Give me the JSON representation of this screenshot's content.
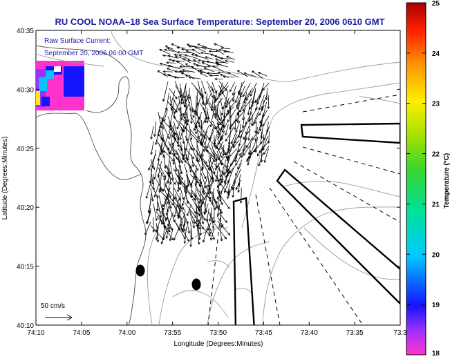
{
  "title": "RU COOL  NOAA–18  Sea Surface Temperature:  September 20, 2006 0610 GMT",
  "overlay": {
    "line1": "Raw Surface Current:",
    "line2": "September 20, 2006 06:00 GMT"
  },
  "scale_label": "50 cm/s",
  "axes": {
    "xlabel": "Longitude (Degrees:Minutes)",
    "ylabel": "Latitude (Degrees:Minutes)",
    "x_ticks": [
      "74:10",
      "74:05",
      "74:00",
      "73:55",
      "73:50",
      "73:45",
      "73:40",
      "73:35",
      "73:3"
    ],
    "y_ticks": [
      "40:35",
      "40:30",
      "40:25",
      "40:20",
      "40:15",
      "40:10"
    ]
  },
  "colorbar": {
    "label": "Temperature (°C)",
    "ticks": [
      "25",
      "24",
      "23",
      "22",
      "21",
      "20",
      "19",
      "18"
    ],
    "range": [
      18,
      25
    ]
  },
  "colors": {
    "title": "#1a1aa0",
    "overlay_text": "#1a1aa0",
    "coastline": "#555555",
    "contours": "#9a9a9a"
  }
}
